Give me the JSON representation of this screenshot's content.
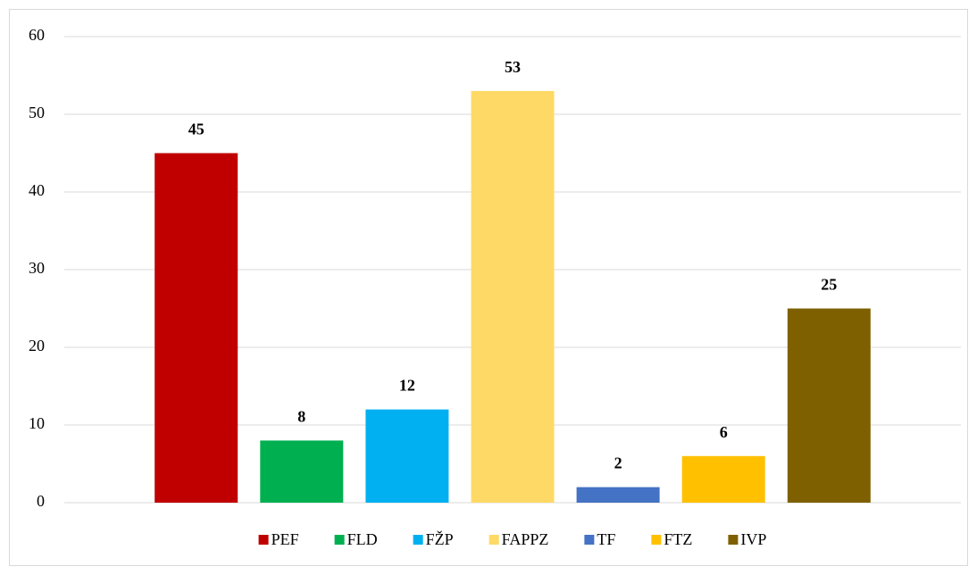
{
  "chart_data": {
    "type": "bar",
    "categories": [
      null
    ],
    "series": [
      {
        "name": "PEF",
        "color": "#c00000",
        "values": [
          45
        ]
      },
      {
        "name": "FLD",
        "color": "#00b050",
        "values": [
          8
        ]
      },
      {
        "name": "FŽP",
        "color": "#00b0f0",
        "values": [
          12
        ]
      },
      {
        "name": "FAPPZ",
        "color": "#ffd966",
        "values": [
          53
        ]
      },
      {
        "name": "TF",
        "color": "#4472c4",
        "values": [
          2
        ]
      },
      {
        "name": "FTZ",
        "color": "#ffc000",
        "values": [
          6
        ]
      },
      {
        "name": "IVP",
        "color": "#7f6000",
        "values": [
          25
        ]
      }
    ],
    "ylim": [
      0,
      60
    ],
    "yticks": [
      0,
      10,
      20,
      30,
      40,
      50,
      60
    ],
    "grid": true,
    "legend": "bottom"
  }
}
